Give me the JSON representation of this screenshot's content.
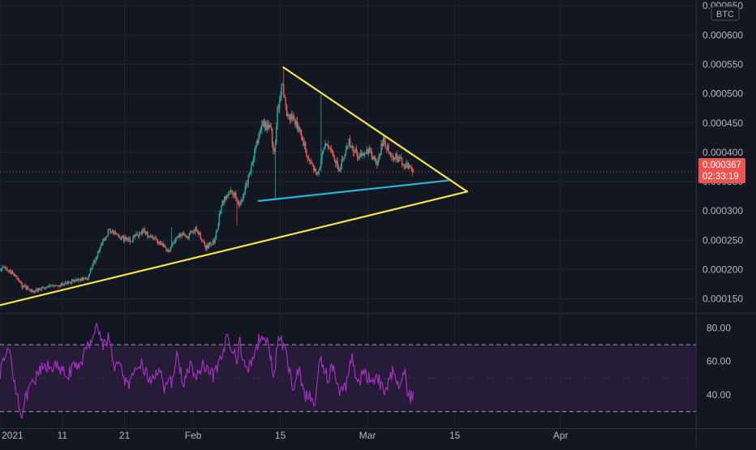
{
  "currency_badge": "BTC",
  "price_label": {
    "value": "0.000367",
    "countdown": "02:33:19"
  },
  "colors": {
    "background": "#131722",
    "grid": "#1f2433",
    "up": "#26a69a",
    "down": "#ef5350",
    "trend": "#f2e34c",
    "support": "#26b4d8",
    "rsi": "#a32fbe",
    "rsi_band": "#2a1d3c",
    "text": "#b2b5be",
    "price_tag": "#ef5350"
  },
  "chart_data": [
    {
      "type": "candlestick",
      "title": "",
      "x_tick_labels": [
        "2021",
        "11",
        "21",
        "Feb",
        "15",
        "Mar",
        "15",
        "Apr"
      ],
      "y_tick_labels": [
        "0.000150",
        "0.000200",
        "0.000250",
        "0.000300",
        "0.000350",
        "0.000400",
        "0.000450",
        "0.000500",
        "0.000550",
        "0.000600",
        "0.000650"
      ],
      "ylim": [
        0.00013,
        0.00066
      ],
      "last_price": 0.000367,
      "candles_per_day": 6,
      "start_day": -4.8,
      "start_price": 0.00021,
      "anchors": [
        [
          -4.8,
          0.00021
        ],
        [
          -3.8,
          0.000205
        ],
        [
          -2.5,
          0.00018
        ],
        [
          0.5,
          0.000205
        ],
        [
          2.5,
          0.00019
        ],
        [
          3.5,
          0.000172
        ],
        [
          5.5,
          0.000162
        ],
        [
          6.5,
          0.000168
        ],
        [
          9.5,
          0.000173
        ],
        [
          11.0,
          0.000178
        ],
        [
          14.0,
          0.000185
        ],
        [
          16.2,
          0.00024
        ],
        [
          17.5,
          0.000268
        ],
        [
          19.0,
          0.000255
        ],
        [
          21.0,
          0.00025
        ],
        [
          23.0,
          0.000265
        ],
        [
          25.0,
          0.00025
        ],
        [
          27.0,
          0.000232
        ],
        [
          29.0,
          0.00026
        ],
        [
          30.0,
          0.000255
        ],
        [
          31.5,
          0.00027
        ],
        [
          33.0,
          0.000238
        ],
        [
          34.5,
          0.000248
        ],
        [
          35.5,
          0.00031
        ],
        [
          37.0,
          0.00034
        ],
        [
          38.5,
          0.00031
        ],
        [
          40.0,
          0.00036
        ],
        [
          42.0,
          0.00045
        ],
        [
          43.5,
          0.00044
        ],
        [
          44.0,
          0.00039
        ],
        [
          44.5,
          0.00047
        ],
        [
          45.3,
          0.00052
        ],
        [
          46.0,
          0.00047
        ],
        [
          48.0,
          0.00044
        ],
        [
          49.5,
          0.00039
        ],
        [
          51.0,
          0.000362
        ],
        [
          52.2,
          0.00042
        ],
        [
          53.5,
          0.00039
        ],
        [
          54.5,
          0.00037
        ],
        [
          56.0,
          0.00042
        ],
        [
          57.5,
          0.00039
        ],
        [
          59.0,
          0.000405
        ],
        [
          60.5,
          0.00038
        ],
        [
          61.5,
          0.00042
        ],
        [
          63.0,
          0.000395
        ],
        [
          64.5,
          0.000385
        ],
        [
          65.8,
          0.00037
        ],
        [
          66.5,
          0.000367
        ]
      ],
      "spikes": [
        [
          44.2,
          0.000318
        ],
        [
          45.5,
          0.000545
        ],
        [
          51.5,
          0.000498
        ],
        [
          27.5,
          0.000272
        ],
        [
          38.0,
          0.000275
        ]
      ],
      "trendlines": [
        {
          "role": "upper",
          "from": [
            45.5,
            0.000545
          ],
          "to": [
            75.0,
            0.000333
          ]
        },
        {
          "role": "lower",
          "from": [
            -2.0,
            0.000134
          ],
          "to": [
            75.0,
            0.000333
          ]
        },
        {
          "role": "support",
          "from": [
            41.5,
            0.000317
          ],
          "to": [
            72.0,
            0.000352
          ]
        }
      ]
    },
    {
      "type": "line",
      "title": "",
      "y_tick_labels": [
        "40.00",
        "60.00",
        "80.00"
      ],
      "ylim": [
        25,
        87
      ],
      "overbought": 70,
      "oversold": 30,
      "anchors": [
        [
          -4.8,
          45
        ],
        [
          -4.3,
          60
        ],
        [
          -3.8,
          42
        ],
        [
          -3.0,
          33
        ],
        [
          -2.0,
          55
        ],
        [
          -1.2,
          40
        ],
        [
          0.5,
          58
        ],
        [
          1.5,
          66
        ],
        [
          2.5,
          45
        ],
        [
          3.5,
          28
        ],
        [
          4.5,
          42
        ],
        [
          5.5,
          47
        ],
        [
          6.5,
          55
        ],
        [
          8.5,
          58
        ],
        [
          10.5,
          52
        ],
        [
          12.5,
          57
        ],
        [
          14.0,
          68
        ],
        [
          15.5,
          82
        ],
        [
          16.5,
          70
        ],
        [
          17.5,
          75
        ],
        [
          18.0,
          60
        ],
        [
          19.5,
          55
        ],
        [
          20.5,
          45
        ],
        [
          21.5,
          50
        ],
        [
          22.5,
          60
        ],
        [
          23.5,
          52
        ],
        [
          24.5,
          48
        ],
        [
          25.5,
          58
        ],
        [
          26.5,
          42
        ],
        [
          27.5,
          48
        ],
        [
          28.5,
          64
        ],
        [
          29.5,
          45
        ],
        [
          30.5,
          58
        ],
        [
          31.5,
          50
        ],
        [
          32.5,
          57
        ],
        [
          33.5,
          52
        ],
        [
          34.5,
          52
        ],
        [
          35.5,
          60
        ],
        [
          36.5,
          76
        ],
        [
          37.2,
          70
        ],
        [
          38.0,
          60
        ],
        [
          38.5,
          72
        ],
        [
          39.5,
          53
        ],
        [
          40.5,
          62
        ],
        [
          41.5,
          72
        ],
        [
          42.5,
          78
        ],
        [
          43.0,
          70
        ],
        [
          44.0,
          50
        ],
        [
          44.5,
          70
        ],
        [
          45.0,
          75
        ],
        [
          46.0,
          62
        ],
        [
          47.0,
          45
        ],
        [
          48.0,
          55
        ],
        [
          49.0,
          40
        ],
        [
          49.7,
          38
        ],
        [
          50.5,
          35
        ],
        [
          51.5,
          63
        ],
        [
          52.5,
          50
        ],
        [
          53.5,
          57
        ],
        [
          54.5,
          40
        ],
        [
          55.5,
          45
        ],
        [
          56.5,
          65
        ],
        [
          57.5,
          45
        ],
        [
          58.5,
          55
        ],
        [
          59.5,
          47
        ],
        [
          60.5,
          53
        ],
        [
          61.5,
          42
        ],
        [
          62.5,
          47
        ],
        [
          63.2,
          56
        ],
        [
          64.0,
          47
        ],
        [
          65.0,
          57
        ],
        [
          65.5,
          37
        ],
        [
          66.0,
          40
        ],
        [
          66.5,
          42
        ]
      ]
    }
  ]
}
